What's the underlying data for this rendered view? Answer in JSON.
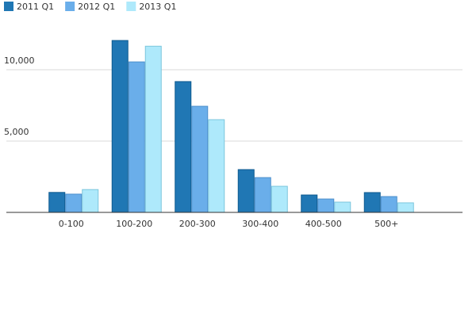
{
  "chart_data": {
    "type": "bar",
    "categories": [
      "0-100",
      "100-200",
      "200-300",
      "300-400",
      "400-500",
      "500+"
    ],
    "series": [
      {
        "name": "2011 Q1",
        "color": "#2077b4",
        "values": [
          1400,
          12050,
          9170,
          3000,
          1220,
          1390
        ]
      },
      {
        "name": "2012 Q1",
        "color": "#6aaeea",
        "values": [
          1280,
          10550,
          7440,
          2440,
          940,
          1110
        ]
      },
      {
        "name": "2013 Q1",
        "color": "#aee9fb",
        "values": [
          1600,
          11650,
          6500,
          1830,
          720,
          670
        ]
      }
    ],
    "ylim": [
      0,
      13000
    ],
    "yticks": [
      {
        "value": 5000,
        "label": "5,000"
      },
      {
        "value": 10000,
        "label": "10,000"
      }
    ],
    "grid": true
  }
}
